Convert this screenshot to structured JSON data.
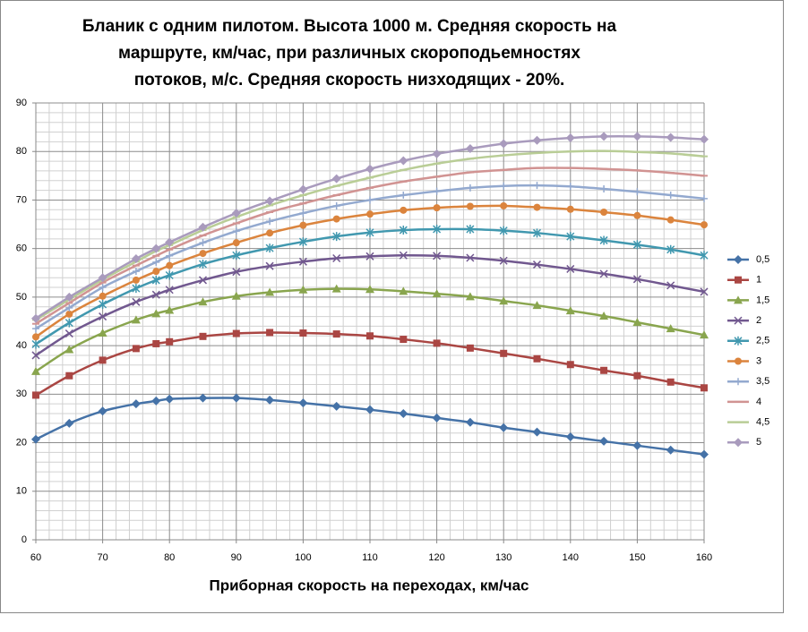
{
  "chart_data": {
    "type": "line",
    "title": [
      "Бланик с одним пилотом. Высота 1000 м. Средняя скорость на",
      "маршруте, км/час, при различных скороподьемностях",
      "потоков, м/с. Средняя скорость низходящих - 20%."
    ],
    "x_label": "Приборная скорость на переходах, км/час",
    "x": [
      60,
      65,
      70,
      75,
      78,
      80,
      85,
      90,
      95,
      100,
      105,
      110,
      115,
      120,
      125,
      130,
      135,
      140,
      145,
      150,
      155,
      160
    ],
    "xlim": [
      60,
      160
    ],
    "xticks": [
      60,
      70,
      80,
      90,
      100,
      110,
      120,
      130,
      140,
      150,
      160
    ],
    "ylim": [
      0,
      90
    ],
    "yticks": [
      0,
      10,
      20,
      30,
      40,
      50,
      60,
      70,
      80,
      90
    ],
    "grid": true,
    "minor_grid": true,
    "legend": "right",
    "series": [
      {
        "name": "0,5",
        "color": "#4572a7",
        "marker": "diamond",
        "values": [
          20.7,
          24.0,
          26.5,
          28.0,
          28.6,
          29.0,
          29.2,
          29.2,
          28.8,
          28.2,
          27.5,
          26.8,
          26.0,
          25.1,
          24.2,
          23.1,
          22.2,
          21.2,
          20.3,
          19.4,
          18.5,
          17.6
        ]
      },
      {
        "name": "1",
        "color": "#aa4643",
        "marker": "square",
        "values": [
          29.8,
          33.8,
          37.0,
          39.4,
          40.4,
          40.8,
          41.9,
          42.5,
          42.7,
          42.6,
          42.4,
          42.0,
          41.3,
          40.5,
          39.5,
          38.4,
          37.3,
          36.1,
          34.9,
          33.8,
          32.5,
          31.3
        ]
      },
      {
        "name": "1,5",
        "color": "#89a54e",
        "marker": "triangle",
        "values": [
          34.7,
          39.2,
          42.6,
          45.3,
          46.6,
          47.3,
          49.0,
          50.2,
          51.0,
          51.5,
          51.7,
          51.6,
          51.2,
          50.7,
          50.1,
          49.2,
          48.3,
          47.2,
          46.1,
          44.8,
          43.5,
          42.2
        ]
      },
      {
        "name": "2",
        "color": "#71588f",
        "marker": "x",
        "values": [
          38.0,
          42.5,
          46.0,
          49.0,
          50.5,
          51.5,
          53.5,
          55.2,
          56.4,
          57.3,
          58.0,
          58.4,
          58.6,
          58.5,
          58.1,
          57.5,
          56.7,
          55.8,
          54.8,
          53.7,
          52.4,
          51.1
        ]
      },
      {
        "name": "2,5",
        "color": "#4198af",
        "marker": "star",
        "values": [
          40.3,
          44.7,
          48.5,
          51.8,
          53.5,
          54.5,
          56.8,
          58.6,
          60.1,
          61.4,
          62.5,
          63.3,
          63.8,
          64.0,
          64.0,
          63.7,
          63.2,
          62.5,
          61.7,
          60.8,
          59.8,
          58.6
        ]
      },
      {
        "name": "3",
        "color": "#db843d",
        "marker": "circle",
        "values": [
          41.8,
          46.5,
          50.2,
          53.5,
          55.3,
          56.5,
          59.0,
          61.2,
          63.2,
          64.8,
          66.1,
          67.1,
          67.9,
          68.4,
          68.7,
          68.8,
          68.5,
          68.1,
          67.5,
          66.8,
          65.9,
          64.9
        ]
      },
      {
        "name": "3,5",
        "color": "#93a9cf",
        "marker": "plus",
        "values": [
          43.5,
          47.8,
          52.0,
          55.3,
          57.2,
          58.5,
          61.2,
          63.6,
          65.6,
          67.3,
          68.8,
          70.0,
          71.0,
          71.8,
          72.5,
          72.9,
          73.0,
          72.8,
          72.3,
          71.7,
          71.0,
          70.3
        ]
      },
      {
        "name": "4",
        "color": "#d19392",
        "marker": "dash",
        "values": [
          44.5,
          48.8,
          53.0,
          56.5,
          58.5,
          59.8,
          62.7,
          65.2,
          67.5,
          69.3,
          71.0,
          72.5,
          73.8,
          74.8,
          75.7,
          76.2,
          76.6,
          76.6,
          76.4,
          76.1,
          75.6,
          75.0
        ]
      },
      {
        "name": "4,5",
        "color": "#b9cd96",
        "marker": "dash",
        "values": [
          45.3,
          49.5,
          53.6,
          57.3,
          59.5,
          60.7,
          63.8,
          66.5,
          68.9,
          71.0,
          72.9,
          74.6,
          76.2,
          77.5,
          78.5,
          79.2,
          79.7,
          80.0,
          80.1,
          79.9,
          79.6,
          79.0
        ]
      },
      {
        "name": "5",
        "color": "#a99bbd",
        "marker": "diamond",
        "values": [
          45.6,
          50.0,
          54.0,
          57.9,
          60.0,
          61.3,
          64.4,
          67.3,
          69.8,
          72.2,
          74.4,
          76.4,
          78.1,
          79.5,
          80.6,
          81.6,
          82.3,
          82.8,
          83.1,
          83.1,
          82.9,
          82.5
        ]
      }
    ]
  }
}
